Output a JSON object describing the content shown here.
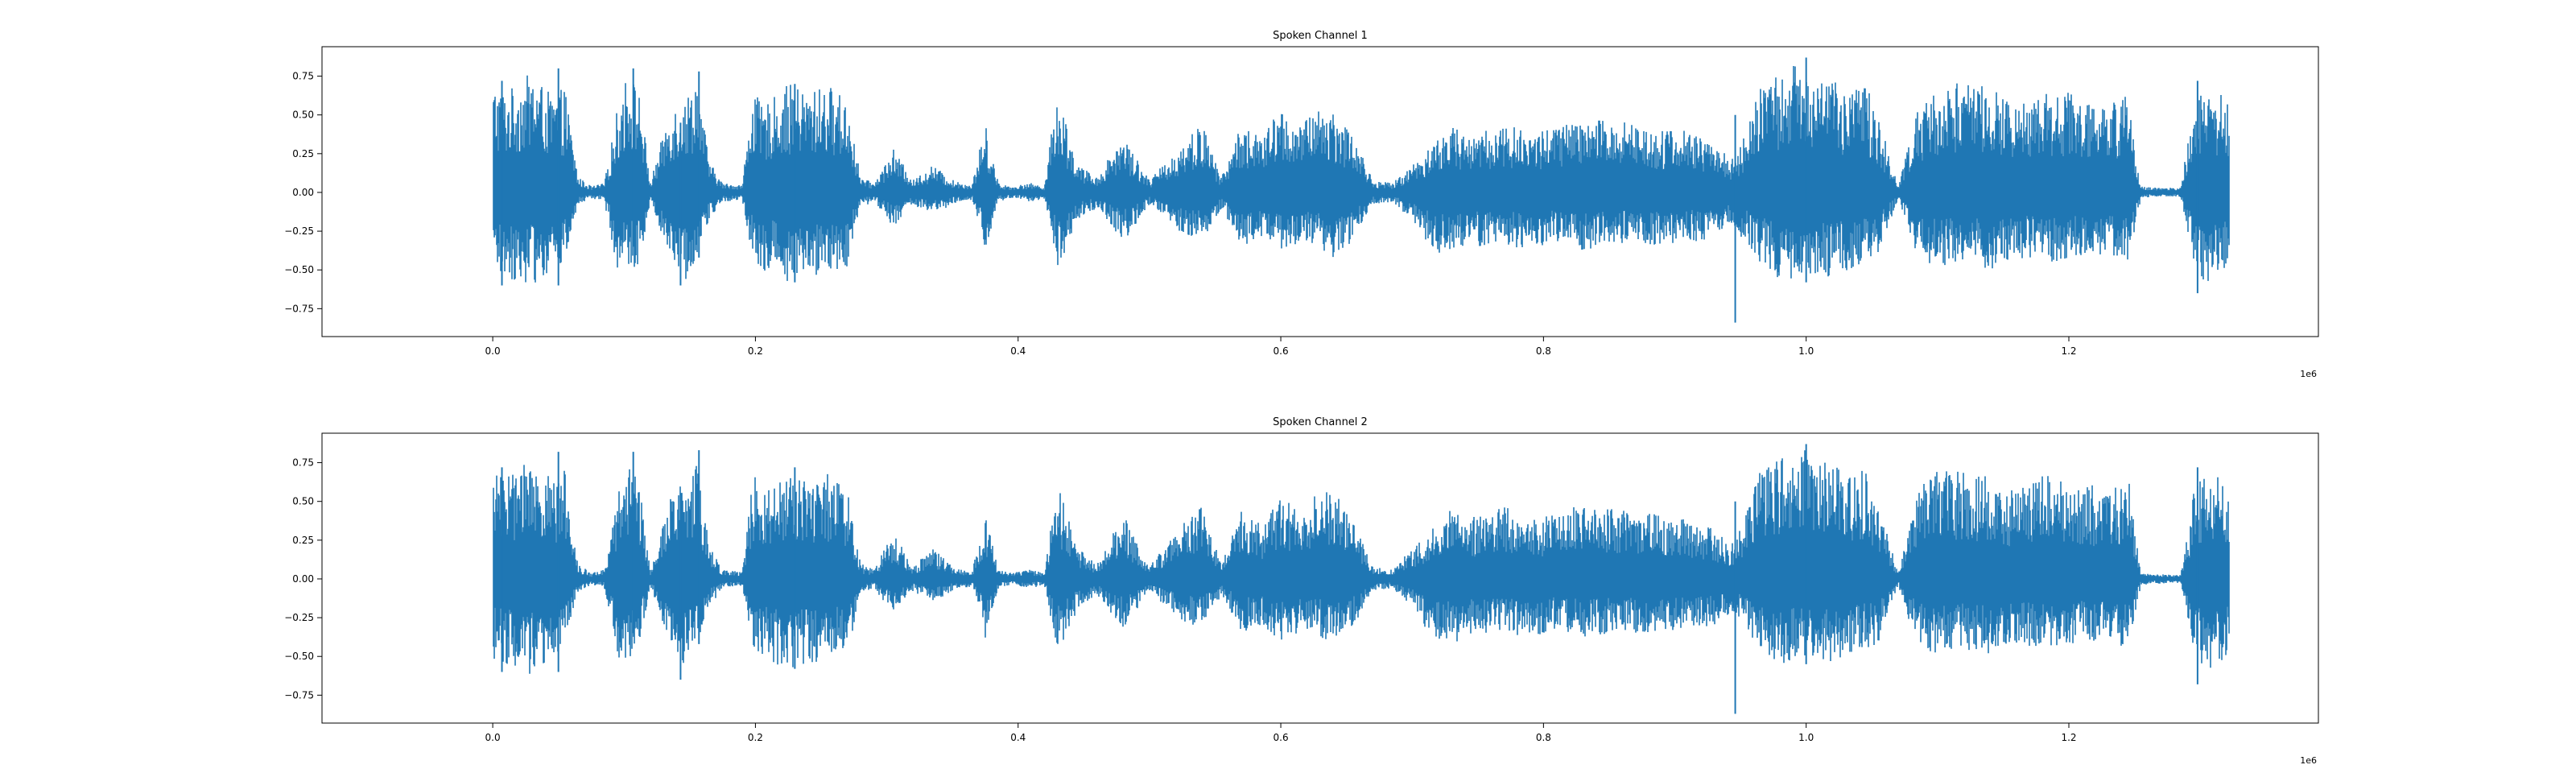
{
  "chart_data": [
    {
      "type": "line",
      "title": "Spoken Channel 1",
      "xlabel": "",
      "ylabel": "",
      "x_offset_text": "1e6",
      "xlim": [
        -130000,
        1390000
      ],
      "ylim": [
        -0.93,
        0.94
      ],
      "x_ticks": [
        0.0,
        0.2,
        0.4,
        0.6,
        0.8,
        1.0,
        1.2
      ],
      "x_tick_labels": [
        "0.0",
        "0.2",
        "0.4",
        "0.6",
        "0.8",
        "1.0",
        "1.2"
      ],
      "y_ticks": [
        0.75,
        0.5,
        0.25,
        0.0,
        -0.25,
        -0.5,
        -0.75
      ],
      "y_tick_labels": [
        "0.75",
        "0.50",
        "0.25",
        "0.00",
        "−0.25",
        "−0.50",
        "−0.75"
      ],
      "grid": false,
      "color": "#1f77b4",
      "envelope": {
        "x": [
          0,
          10000,
          30000,
          45000,
          55000,
          65000,
          75000,
          85000,
          95000,
          103000,
          112000,
          120000,
          135000,
          148000,
          155000,
          165000,
          175000,
          190000,
          198000,
          205000,
          215000,
          225000,
          240000,
          255000,
          270000,
          280000,
          290000,
          305000,
          320000,
          335000,
          350000,
          365000,
          375000,
          385000,
          395000,
          410000,
          420000,
          430000,
          445000,
          460000,
          480000,
          500000,
          515000,
          525000,
          540000,
          555000,
          570000,
          585000,
          600000,
          615000,
          625000,
          640000,
          655000,
          670000,
          685000,
          700000,
          715000,
          730000,
          750000,
          770000,
          790000,
          810000,
          830000,
          850000,
          870000,
          890000,
          910000,
          930000,
          942000,
          950000,
          965000,
          980000,
          1000000,
          1015000,
          1030000,
          1045000,
          1055000,
          1070000,
          1085000,
          1100000,
          1120000,
          1140000,
          1160000,
          1180000,
          1200000,
          1215000,
          1230000,
          1245000,
          1255000,
          1270000,
          1285000,
          1295000,
          1305000,
          1315000,
          1322000
        ],
        "upper": [
          0.72,
          0.65,
          0.78,
          0.62,
          0.68,
          0.1,
          0.04,
          0.06,
          0.55,
          0.8,
          0.65,
          0.06,
          0.55,
          0.62,
          0.78,
          0.2,
          0.06,
          0.05,
          0.68,
          0.55,
          0.62,
          0.7,
          0.65,
          0.7,
          0.6,
          0.1,
          0.06,
          0.28,
          0.08,
          0.18,
          0.08,
          0.05,
          0.45,
          0.06,
          0.04,
          0.06,
          0.04,
          0.68,
          0.18,
          0.1,
          0.38,
          0.08,
          0.22,
          0.32,
          0.45,
          0.1,
          0.45,
          0.35,
          0.55,
          0.42,
          0.55,
          0.55,
          0.38,
          0.08,
          0.06,
          0.18,
          0.32,
          0.42,
          0.38,
          0.45,
          0.38,
          0.45,
          0.45,
          0.48,
          0.45,
          0.42,
          0.4,
          0.32,
          0.22,
          0.3,
          0.68,
          0.78,
          0.85,
          0.78,
          0.65,
          0.72,
          0.5,
          0.04,
          0.55,
          0.68,
          0.72,
          0.68,
          0.55,
          0.68,
          0.65,
          0.62,
          0.55,
          0.68,
          0.04,
          0.03,
          0.03,
          0.55,
          0.72,
          0.65,
          0.55
        ],
        "lower": [
          -0.5,
          -0.55,
          -0.6,
          -0.52,
          -0.45,
          -0.08,
          -0.04,
          -0.06,
          -0.5,
          -0.55,
          -0.45,
          -0.05,
          -0.42,
          -0.58,
          -0.4,
          -0.18,
          -0.06,
          -0.05,
          -0.45,
          -0.5,
          -0.52,
          -0.58,
          -0.55,
          -0.52,
          -0.48,
          -0.1,
          -0.06,
          -0.22,
          -0.08,
          -0.15,
          -0.08,
          -0.05,
          -0.38,
          -0.06,
          -0.04,
          -0.06,
          -0.04,
          -0.5,
          -0.18,
          -0.1,
          -0.32,
          -0.08,
          -0.2,
          -0.28,
          -0.32,
          -0.1,
          -0.35,
          -0.3,
          -0.38,
          -0.35,
          -0.35,
          -0.42,
          -0.32,
          -0.08,
          -0.06,
          -0.18,
          -0.38,
          -0.42,
          -0.35,
          -0.35,
          -0.38,
          -0.32,
          -0.38,
          -0.32,
          -0.35,
          -0.35,
          -0.32,
          -0.3,
          -0.2,
          -0.28,
          -0.45,
          -0.58,
          -0.52,
          -0.55,
          -0.52,
          -0.45,
          -0.4,
          -0.04,
          -0.42,
          -0.48,
          -0.45,
          -0.5,
          -0.42,
          -0.45,
          -0.45,
          -0.38,
          -0.42,
          -0.45,
          -0.04,
          -0.03,
          -0.03,
          -0.45,
          -0.62,
          -0.55,
          -0.45
        ]
      },
      "spikes": [
        {
          "x": 7000,
          "y_min": -0.6,
          "y_max": 0.72
        },
        {
          "x": 50000,
          "y_min": -0.6,
          "y_max": 0.8
        },
        {
          "x": 107000,
          "y_min": -0.35,
          "y_max": 0.8
        },
        {
          "x": 143000,
          "y_min": -0.6,
          "y_max": 0.45
        },
        {
          "x": 157000,
          "y_min": -0.42,
          "y_max": 0.78
        },
        {
          "x": 230000,
          "y_min": -0.58,
          "y_max": 0.7
        },
        {
          "x": 946000,
          "y_min": -0.84,
          "y_max": 0.5
        },
        {
          "x": 1000000,
          "y_min": -0.58,
          "y_max": 0.87
        },
        {
          "x": 1298000,
          "y_min": -0.65,
          "y_max": 0.72
        }
      ]
    },
    {
      "type": "line",
      "title": "Spoken Channel 2",
      "xlabel": "",
      "ylabel": "",
      "x_offset_text": "1e6",
      "xlim": [
        -130000,
        1390000
      ],
      "ylim": [
        -0.93,
        0.94
      ],
      "x_ticks": [
        0.0,
        0.2,
        0.4,
        0.6,
        0.8,
        1.0,
        1.2
      ],
      "x_tick_labels": [
        "0.0",
        "0.2",
        "0.4",
        "0.6",
        "0.8",
        "1.0",
        "1.2"
      ],
      "y_ticks": [
        0.75,
        0.5,
        0.25,
        0.0,
        -0.25,
        -0.5,
        -0.75
      ],
      "y_tick_labels": [
        "0.75",
        "0.50",
        "0.25",
        "0.00",
        "−0.25",
        "−0.50",
        "−0.75"
      ],
      "grid": false,
      "color": "#1f77b4",
      "envelope": {
        "x": [
          0,
          10000,
          30000,
          45000,
          55000,
          65000,
          75000,
          85000,
          95000,
          103000,
          112000,
          120000,
          135000,
          148000,
          155000,
          165000,
          175000,
          190000,
          198000,
          205000,
          215000,
          225000,
          240000,
          255000,
          270000,
          280000,
          290000,
          305000,
          320000,
          335000,
          350000,
          365000,
          375000,
          385000,
          395000,
          410000,
          420000,
          430000,
          445000,
          460000,
          480000,
          500000,
          515000,
          525000,
          540000,
          555000,
          570000,
          585000,
          600000,
          615000,
          625000,
          640000,
          655000,
          670000,
          685000,
          700000,
          715000,
          730000,
          750000,
          770000,
          790000,
          810000,
          830000,
          850000,
          870000,
          890000,
          910000,
          930000,
          942000,
          950000,
          965000,
          980000,
          1000000,
          1015000,
          1030000,
          1045000,
          1055000,
          1070000,
          1085000,
          1100000,
          1120000,
          1140000,
          1160000,
          1180000,
          1200000,
          1215000,
          1230000,
          1245000,
          1255000,
          1270000,
          1285000,
          1295000,
          1305000,
          1315000,
          1322000
        ],
        "upper": [
          0.72,
          0.68,
          0.78,
          0.65,
          0.7,
          0.1,
          0.04,
          0.06,
          0.55,
          0.8,
          0.62,
          0.06,
          0.55,
          0.65,
          0.8,
          0.22,
          0.06,
          0.05,
          0.7,
          0.58,
          0.62,
          0.72,
          0.65,
          0.68,
          0.58,
          0.1,
          0.06,
          0.3,
          0.08,
          0.2,
          0.08,
          0.05,
          0.42,
          0.06,
          0.04,
          0.06,
          0.04,
          0.62,
          0.2,
          0.1,
          0.42,
          0.08,
          0.25,
          0.35,
          0.5,
          0.1,
          0.45,
          0.35,
          0.55,
          0.45,
          0.55,
          0.58,
          0.38,
          0.08,
          0.06,
          0.2,
          0.32,
          0.45,
          0.4,
          0.48,
          0.38,
          0.45,
          0.48,
          0.48,
          0.45,
          0.42,
          0.38,
          0.32,
          0.22,
          0.32,
          0.7,
          0.8,
          0.85,
          0.78,
          0.68,
          0.72,
          0.5,
          0.04,
          0.58,
          0.7,
          0.72,
          0.65,
          0.58,
          0.68,
          0.62,
          0.62,
          0.55,
          0.68,
          0.04,
          0.03,
          0.03,
          0.55,
          0.72,
          0.68,
          0.55
        ],
        "lower": [
          -0.52,
          -0.55,
          -0.62,
          -0.5,
          -0.45,
          -0.08,
          -0.04,
          -0.06,
          -0.5,
          -0.58,
          -0.45,
          -0.05,
          -0.42,
          -0.6,
          -0.42,
          -0.18,
          -0.06,
          -0.05,
          -0.48,
          -0.5,
          -0.55,
          -0.58,
          -0.55,
          -0.52,
          -0.5,
          -0.1,
          -0.06,
          -0.22,
          -0.08,
          -0.15,
          -0.08,
          -0.05,
          -0.38,
          -0.06,
          -0.04,
          -0.06,
          -0.04,
          -0.5,
          -0.2,
          -0.1,
          -0.32,
          -0.08,
          -0.2,
          -0.28,
          -0.32,
          -0.1,
          -0.35,
          -0.3,
          -0.4,
          -0.35,
          -0.35,
          -0.42,
          -0.32,
          -0.08,
          -0.06,
          -0.18,
          -0.38,
          -0.42,
          -0.35,
          -0.35,
          -0.38,
          -0.32,
          -0.38,
          -0.35,
          -0.35,
          -0.35,
          -0.32,
          -0.3,
          -0.22,
          -0.28,
          -0.45,
          -0.55,
          -0.5,
          -0.55,
          -0.5,
          -0.45,
          -0.42,
          -0.04,
          -0.45,
          -0.48,
          -0.45,
          -0.5,
          -0.42,
          -0.45,
          -0.42,
          -0.4,
          -0.42,
          -0.45,
          -0.04,
          -0.03,
          -0.03,
          -0.45,
          -0.62,
          -0.58,
          -0.45
        ]
      },
      "spikes": [
        {
          "x": 7000,
          "y_min": -0.6,
          "y_max": 0.72
        },
        {
          "x": 50000,
          "y_min": -0.6,
          "y_max": 0.82
        },
        {
          "x": 107000,
          "y_min": -0.35,
          "y_max": 0.82
        },
        {
          "x": 143000,
          "y_min": -0.65,
          "y_max": 0.45
        },
        {
          "x": 157000,
          "y_min": -0.42,
          "y_max": 0.83
        },
        {
          "x": 230000,
          "y_min": -0.58,
          "y_max": 0.72
        },
        {
          "x": 946000,
          "y_min": -0.87,
          "y_max": 0.5
        },
        {
          "x": 1000000,
          "y_min": -0.55,
          "y_max": 0.87
        },
        {
          "x": 1298000,
          "y_min": -0.68,
          "y_max": 0.72
        }
      ]
    }
  ]
}
